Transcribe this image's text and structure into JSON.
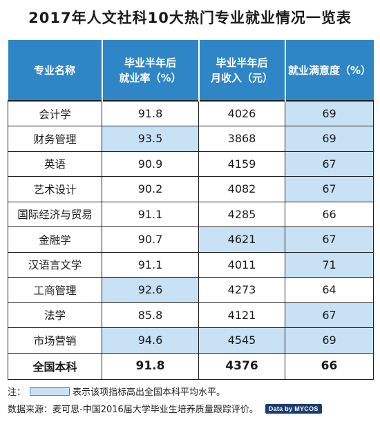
{
  "title": "2017年人文社科10大热门专业就业情况一览表",
  "headers": [
    [
      "专业名称"
    ],
    [
      "毕业半年后",
      "就业率（%）"
    ],
    [
      "毕业半年后",
      "月收入（元）"
    ],
    [
      "就业满意度（%）"
    ]
  ],
  "rows": [
    {
      "name": "会计学",
      "rate": "91.8",
      "income": "4026",
      "sat": "69",
      "hi": [
        false,
        false,
        true
      ]
    },
    {
      "name": "财务管理",
      "rate": "93.5",
      "income": "3868",
      "sat": "69",
      "hi": [
        true,
        false,
        true
      ]
    },
    {
      "name": "英语",
      "rate": "90.9",
      "income": "4159",
      "sat": "67",
      "hi": [
        false,
        false,
        true
      ]
    },
    {
      "name": "艺术设计",
      "rate": "90.2",
      "income": "4082",
      "sat": "67",
      "hi": [
        false,
        false,
        true
      ]
    },
    {
      "name": "国际经济与贸易",
      "rate": "91.1",
      "income": "4285",
      "sat": "66",
      "hi": [
        false,
        false,
        false
      ]
    },
    {
      "name": "金融学",
      "rate": "90.7",
      "income": "4621",
      "sat": "67",
      "hi": [
        false,
        true,
        true
      ]
    },
    {
      "name": "汉语言文学",
      "rate": "91.1",
      "income": "4011",
      "sat": "71",
      "hi": [
        false,
        false,
        true
      ]
    },
    {
      "name": "工商管理",
      "rate": "92.6",
      "income": "4273",
      "sat": "64",
      "hi": [
        true,
        false,
        false
      ]
    },
    {
      "name": "法学",
      "rate": "85.8",
      "income": "4121",
      "sat": "67",
      "hi": [
        false,
        false,
        true
      ]
    },
    {
      "name": "市场营销",
      "rate": "94.6",
      "income": "4545",
      "sat": "69",
      "hi": [
        true,
        true,
        true
      ]
    }
  ],
  "total": {
    "name": "全国本科",
    "rate": "91.8",
    "income": "4376",
    "sat": "66"
  },
  "note": {
    "prefix": "注：",
    "text": "表示该项指标高出全国本科平均水平。"
  },
  "source": {
    "text": "数据来源：麦可思-中国2016届大学毕业生培养质量跟踪评价。",
    "badge": "Data by MYCOS"
  },
  "colors": {
    "header": "#2f86c6",
    "highlight": "#c9e1f5",
    "grid": "#1f1f1f"
  }
}
